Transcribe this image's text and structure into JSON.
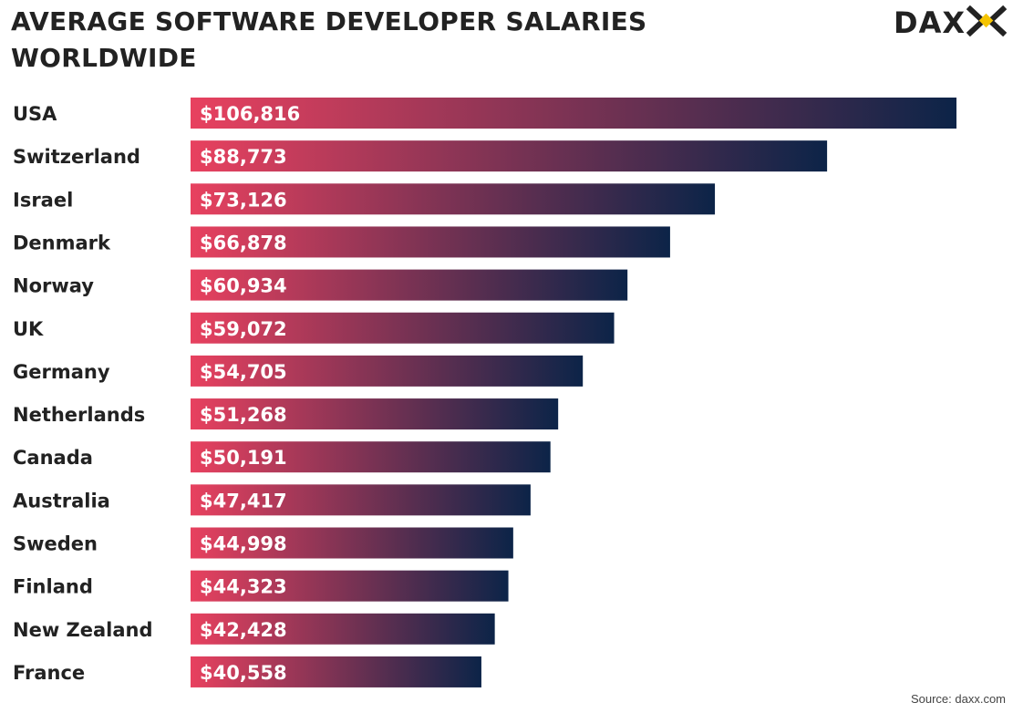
{
  "title": "AVERAGE SOFTWARE DEVELOPER SALARIES WORLDWIDE",
  "logo": {
    "text": "DAXX",
    "colors": {
      "text": "#222222",
      "accent": "#f5c400"
    }
  },
  "source": "Source: daxx.com",
  "colors": {
    "bar_start": "#e8415f",
    "bar_end": "#0c2448",
    "label_text": "#222222",
    "value_text": "#ffffff"
  },
  "chart_data": {
    "type": "bar",
    "orientation": "horizontal",
    "title": "AVERAGE SOFTWARE DEVELOPER SALARIES WORLDWIDE",
    "categories": [
      "USA",
      "Switzerland",
      "Israel",
      "Denmark",
      "Norway",
      "UK",
      "Germany",
      "Netherlands",
      "Canada",
      "Australia",
      "Sweden",
      "Finland",
      "New Zealand",
      "France"
    ],
    "values": [
      106816,
      88773,
      73126,
      66878,
      60934,
      59072,
      54705,
      51268,
      50191,
      47417,
      44998,
      44323,
      42428,
      40558
    ],
    "value_labels": [
      "$106,816",
      "$88,773",
      "$73,126",
      "$66,878",
      "$60,934",
      "$59,072",
      "$54,705",
      "$51,268",
      "$50,191",
      "$47,417",
      "$44,998",
      "$44,323",
      "$42,428",
      "$40,558"
    ],
    "xlabel": "",
    "ylabel": "",
    "grid": false,
    "legend": "none"
  }
}
